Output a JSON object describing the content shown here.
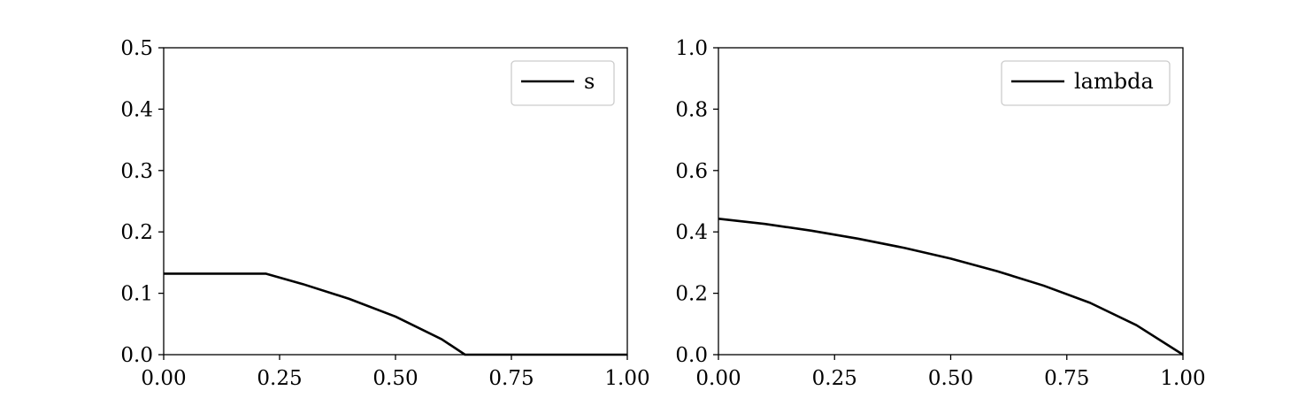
{
  "colors": {
    "background": "#ffffff",
    "line": "#000000",
    "axes": "#000000",
    "legend_border": "#cccccc"
  },
  "chart_data": [
    {
      "type": "line",
      "title": "",
      "xlabel": "",
      "ylabel": "",
      "xlim": [
        0,
        1
      ],
      "ylim": [
        0,
        0.5
      ],
      "xticks": [
        0,
        0.25,
        0.5,
        0.75,
        1.0
      ],
      "xtick_labels": [
        "0.00",
        "0.25",
        "0.50",
        "0.75",
        "1.00"
      ],
      "yticks": [
        0,
        0.1,
        0.2,
        0.3,
        0.4,
        0.5
      ],
      "ytick_labels": [
        "0.0",
        "0.1",
        "0.2",
        "0.3",
        "0.4",
        "0.5"
      ],
      "grid": false,
      "legend_position": "top-right",
      "series": [
        {
          "name": "s",
          "color": "#000000",
          "x": [
            0,
            0.1,
            0.22,
            0.3,
            0.4,
            0.5,
            0.6,
            0.65,
            0.75,
            0.9,
            1.0
          ],
          "y": [
            0.132,
            0.132,
            0.132,
            0.115,
            0.091,
            0.062,
            0.025,
            0.0,
            0.0,
            0.0,
            0.0
          ]
        }
      ]
    },
    {
      "type": "line",
      "title": "",
      "xlabel": "",
      "ylabel": "",
      "xlim": [
        0,
        1
      ],
      "ylim": [
        0,
        1.0
      ],
      "xticks": [
        0,
        0.25,
        0.5,
        0.75,
        1.0
      ],
      "xtick_labels": [
        "0.00",
        "0.25",
        "0.50",
        "0.75",
        "1.00"
      ],
      "yticks": [
        0,
        0.2,
        0.4,
        0.6,
        0.8,
        1.0
      ],
      "ytick_labels": [
        "0.0",
        "0.2",
        "0.4",
        "0.6",
        "0.8",
        "1.0"
      ],
      "grid": false,
      "legend_position": "top-right",
      "series": [
        {
          "name": "lambda",
          "color": "#000000",
          "x": [
            0,
            0.1,
            0.2,
            0.3,
            0.4,
            0.5,
            0.6,
            0.7,
            0.8,
            0.9,
            1.0
          ],
          "y": [
            0.443,
            0.426,
            0.404,
            0.378,
            0.348,
            0.313,
            0.272,
            0.225,
            0.169,
            0.096,
            0.0
          ]
        }
      ]
    }
  ]
}
